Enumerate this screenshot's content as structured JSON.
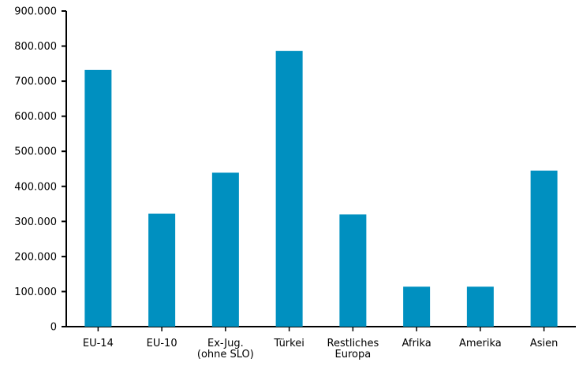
{
  "chart_data": {
    "type": "bar",
    "title": "",
    "xlabel": "",
    "ylabel": "",
    "categories": [
      [
        "EU-14"
      ],
      [
        "EU-10"
      ],
      [
        "Ex-Jug.",
        "(ohne SLO)"
      ],
      [
        "Türkei"
      ],
      [
        "Restliches",
        "Europa"
      ],
      [
        "Afrika"
      ],
      [
        "Amerika"
      ],
      [
        "Asien"
      ]
    ],
    "values": [
      732000,
      322000,
      439000,
      786000,
      320000,
      114000,
      114000,
      445000
    ],
    "ylim": [
      0,
      900000
    ],
    "yticks": [
      0,
      100000,
      200000,
      300000,
      400000,
      500000,
      600000,
      700000,
      800000,
      900000
    ],
    "ytick_labels": [
      "0",
      "100.000",
      "200.000",
      "300.000",
      "400.000",
      "500.000",
      "600.000",
      "700.000",
      "800.000",
      "900.000"
    ],
    "grid": false,
    "legend": "none",
    "colors": {
      "bar": "#0090c0",
      "axis": "#000000"
    }
  }
}
